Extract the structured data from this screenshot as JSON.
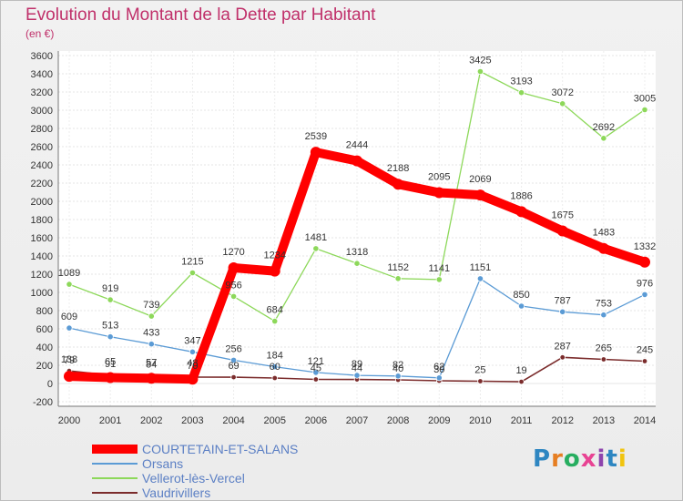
{
  "title": "Evolution du Montant de la Dette par Habitant",
  "subtitle": "(en €)",
  "brand": {
    "text": "Proxiti",
    "letters": [
      {
        "ch": "P",
        "color": "#2e86c1"
      },
      {
        "ch": "r",
        "color": "#e67e22"
      },
      {
        "ch": "o",
        "color": "#27ae60"
      },
      {
        "ch": "x",
        "color": "#e84393"
      },
      {
        "ch": "i",
        "color": "#8e44ad"
      },
      {
        "ch": "t",
        "color": "#2e86c1"
      },
      {
        "ch": "i",
        "color": "#f1c40f"
      }
    ]
  },
  "legend": [
    {
      "label": "COURTETAIN-ET-SALANS",
      "color": "#ff0000"
    },
    {
      "label": "Orsans",
      "color": "#5b9bd5"
    },
    {
      "label": "Vellerot-lès-Vercel",
      "color": "#8dd85a"
    },
    {
      "label": "Vaudrivillers",
      "color": "#7b2c2c"
    }
  ],
  "chart_data": {
    "type": "line",
    "x": [
      2000,
      2001,
      2002,
      2003,
      2004,
      2005,
      2006,
      2007,
      2008,
      2009,
      2010,
      2011,
      2012,
      2013,
      2014
    ],
    "ylim": [
      -200,
      3600
    ],
    "yticks": [
      -200,
      0,
      200,
      400,
      600,
      800,
      1000,
      1200,
      1400,
      1600,
      1800,
      2000,
      2200,
      2400,
      2600,
      2800,
      3000,
      3200,
      3400,
      3600
    ],
    "grid": true,
    "legend_position": "bottom-left",
    "series": [
      {
        "name": "COURTETAIN-ET-SALANS",
        "color": "#ff0000",
        "values": [
          79,
          65,
          57,
          48,
          1270,
          1234,
          2539,
          2444,
          2188,
          2095,
          2069,
          1886,
          1675,
          1483,
          1332
        ],
        "labels": [
          "79",
          "65",
          "57",
          "48",
          "1270",
          "1234",
          "2539",
          "2444",
          "2188",
          "2095",
          "2069",
          "1886",
          "1675",
          "1483",
          "1332"
        ]
      },
      {
        "name": "Orsans",
        "color": "#5b9bd5",
        "values": [
          609,
          513,
          433,
          347,
          256,
          184,
          121,
          89,
          82,
          62,
          null,
          850,
          787,
          753,
          976
        ],
        "extra_point": {
          "x": 2010,
          "value": 1151
        },
        "labels": [
          "609",
          "513",
          "433",
          "347",
          "256",
          "184",
          "121",
          "89",
          "82",
          "62",
          "1151",
          "850",
          "787",
          "753",
          "976"
        ]
      },
      {
        "name": "Vellerot-lès-Vercel",
        "color": "#8dd85a",
        "values": [
          1089,
          919,
          739,
          1215,
          956,
          684,
          1481,
          1318,
          1152,
          1141,
          3425,
          3193,
          3072,
          2692,
          3005
        ],
        "labels": [
          "1089",
          "919",
          "739",
          "1215",
          "956",
          "684",
          "1481",
          "1318",
          "1152",
          "1141",
          "3425",
          "3193",
          "3072",
          "2692",
          "3005"
        ]
      },
      {
        "name": "Vaudrivillers",
        "color": "#7b2c2c",
        "values": [
          138,
          91,
          84,
          70,
          69,
          60,
          45,
          44,
          40,
          30,
          25,
          19,
          287,
          265,
          245
        ],
        "labels": [
          "138",
          "91",
          "84",
          "70",
          "69",
          "60",
          "45",
          "44",
          "40",
          "30",
          "25",
          "19",
          "287",
          "265",
          "245"
        ]
      }
    ]
  }
}
